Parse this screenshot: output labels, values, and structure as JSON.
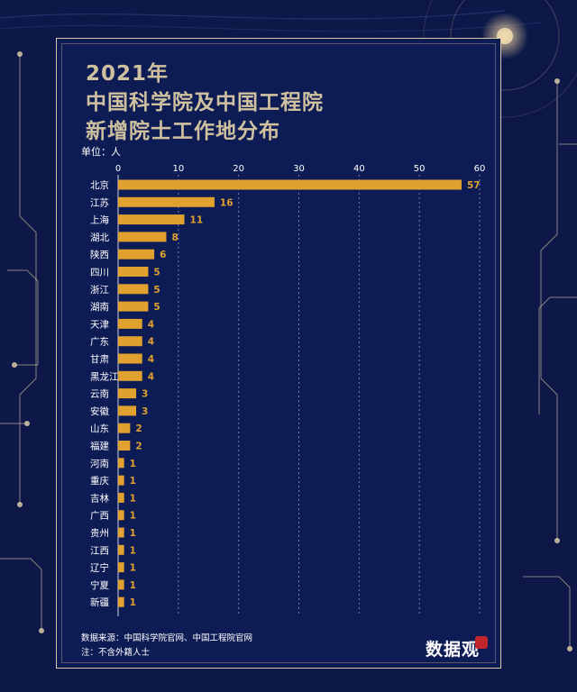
{
  "title_line1": "2021年",
  "title_line2": "中国科学院及中国工程院",
  "title_line3": "新增院士工作地分布",
  "unit_label": "单位：人",
  "source": "数据来源：中国科学院官网、中国工程院官网",
  "note": "注：不含外籍人士",
  "logo": "数据观",
  "colors": {
    "background": "#0e1848",
    "bar": "#e0a12f",
    "accent": "#cfc0a0"
  },
  "chart_data": {
    "type": "bar",
    "orientation": "horizontal",
    "title": "2021年 中国科学院及中国工程院 新增院士工作地分布",
    "xlabel": "",
    "ylabel": "",
    "unit": "人",
    "xlim": [
      0,
      60
    ],
    "xticks": [
      0,
      10,
      20,
      30,
      40,
      50,
      60
    ],
    "categories": [
      "北京",
      "江苏",
      "上海",
      "湖北",
      "陕西",
      "四川",
      "浙江",
      "湖南",
      "天津",
      "广东",
      "甘肃",
      "黑龙江",
      "云南",
      "安徽",
      "山东",
      "福建",
      "河南",
      "重庆",
      "吉林",
      "广西",
      "贵州",
      "江西",
      "辽宁",
      "宁夏",
      "新疆"
    ],
    "values": [
      57,
      16,
      11,
      8,
      6,
      5,
      5,
      5,
      4,
      4,
      4,
      4,
      3,
      3,
      2,
      2,
      1,
      1,
      1,
      1,
      1,
      1,
      1,
      1,
      1
    ],
    "grid": true
  }
}
